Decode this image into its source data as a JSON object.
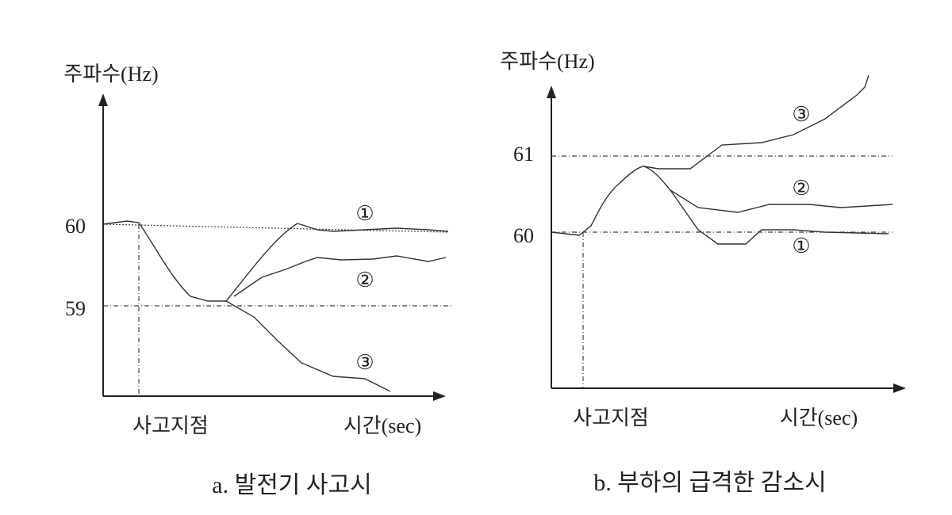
{
  "panels": [
    {
      "y_label": "주파수(Hz)",
      "ticks": [
        "60",
        "59"
      ],
      "curve_labels": [
        "①",
        "②",
        "③"
      ],
      "x_labels": [
        "사고지점",
        "시간(sec)"
      ],
      "caption": "a. 발전기 사고시"
    },
    {
      "y_label": "주파수(Hz)",
      "ticks": [
        "61",
        "60"
      ],
      "curve_labels": [
        "③",
        "②",
        "①"
      ],
      "x_labels": [
        "사고지점",
        "시간(sec)"
      ],
      "caption": "b. 부하의 급격한 감소시"
    }
  ]
}
